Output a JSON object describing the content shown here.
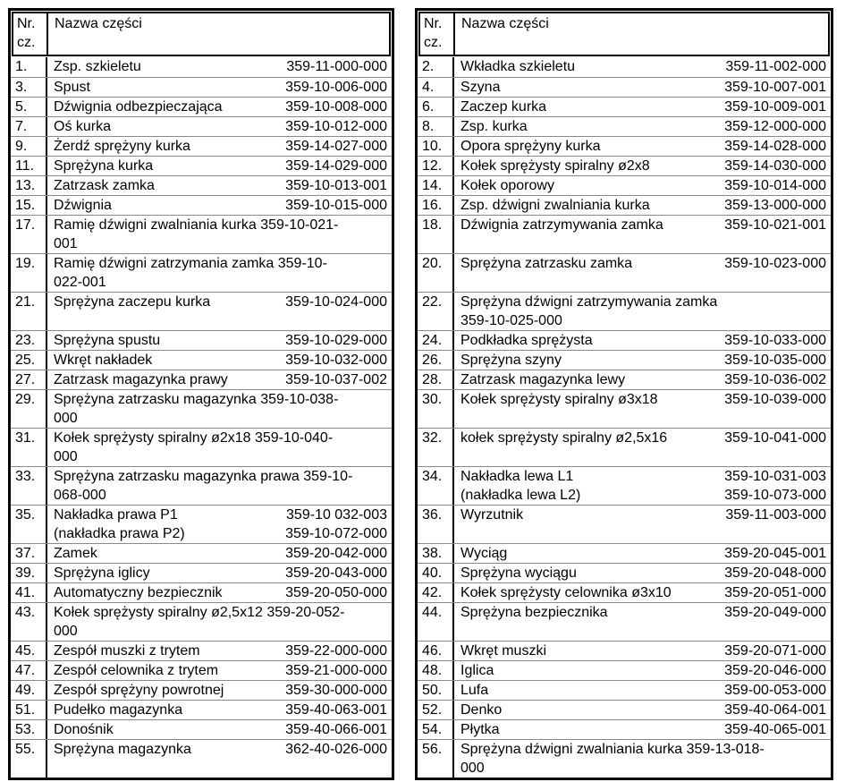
{
  "colors": {
    "background": "#ffffff",
    "text": "#000000",
    "outer_border": "#000000",
    "grid_line": "#8a8a8a"
  },
  "tables": [
    {
      "id": "left",
      "header": {
        "no": "Nr.\ncz.",
        "name": "Nazwa części"
      },
      "rows": [
        {
          "no": "1.",
          "name": "Zsp. szkieletu",
          "number": "359-11-000-000",
          "mode": "split"
        },
        {
          "no": "3.",
          "name": "Spust",
          "number": "359-10-006-000",
          "mode": "split"
        },
        {
          "no": "5.",
          "name": "Dźwignia odbezpieczająca",
          "number": "359-10-008-000",
          "mode": "split"
        },
        {
          "no": "7.",
          "name": "Oś kurka",
          "number": "359-10-012-000",
          "mode": "split"
        },
        {
          "no": "9.",
          "name": "Żerdź sprężyny kurka",
          "number": "359-14-027-000",
          "mode": "split"
        },
        {
          "no": "11.",
          "name": "Sprężyna kurka",
          "number": "359-14-029-000",
          "mode": "split"
        },
        {
          "no": "13.",
          "name": "Zatrzask zamka",
          "number": "359-10-013-001",
          "mode": "split"
        },
        {
          "no": "15.",
          "name": "Dźwignia",
          "number": "359-10-015-000",
          "mode": "split"
        },
        {
          "no": "17.",
          "text": "Ramię dźwigni zwalniania kurka 359-10-021-\n001",
          "mode": "wrap",
          "tall": true
        },
        {
          "no": "19.",
          "text": "Ramię dźwigni zatrzymania zamka 359-10-\n022-001",
          "mode": "wrap",
          "tall": true
        },
        {
          "no": "21.",
          "name": "Sprężyna zaczepu kurka",
          "number": "359-10-024-000",
          "mode": "split",
          "tall": true
        },
        {
          "no": "23.",
          "name": "Sprężyna spustu",
          "number": "359-10-029-000",
          "mode": "split"
        },
        {
          "no": "25.",
          "name": "Wkręt nakładek",
          "number": "359-10-032-000",
          "mode": "split"
        },
        {
          "no": "27.",
          "name": "Zatrzask magazynka prawy",
          "number": "359-10-037-002",
          "mode": "split"
        },
        {
          "no": "29.",
          "text": "Sprężyna zatrzasku magazynka 359-10-038-\n000",
          "mode": "wrap",
          "tall": true
        },
        {
          "no": "31.",
          "text": "Kołek sprężysty spiralny ø2x18  359-10-040-\n000",
          "mode": "wrap",
          "tall": true
        },
        {
          "no": "33.",
          "text": "Sprężyna zatrzasku magazynka prawa 359-10-\n068-000",
          "mode": "wrap",
          "tall": true
        },
        {
          "no": "35.",
          "name": "Nakładka prawa P1\n(nakładka prawa P2)",
          "number": "359-10 032-003\n359-10-072-000",
          "mode": "pair",
          "tall": true
        },
        {
          "no": "37.",
          "name": "Zamek",
          "number": "359-20-042-000",
          "mode": "split"
        },
        {
          "no": "39.",
          "name": "Sprężyna iglicy",
          "number": "359-20-043-000",
          "mode": "split"
        },
        {
          "no": "41.",
          "name": "Automatyczny bezpiecznik",
          "number": "359-20-050-000",
          "mode": "split"
        },
        {
          "no": "43.",
          "text": "Kołek sprężysty spiralny ø2,5x12  359-20-052-\n000",
          "mode": "wrap",
          "tall": true
        },
        {
          "no": "45.",
          "name": "Zespół muszki  z trytem",
          "number": "359-22-000-000",
          "mode": "split"
        },
        {
          "no": "47.",
          "name": "Zespół celownika z trytem",
          "number": "359-21-000-000",
          "mode": "split"
        },
        {
          "no": "49.",
          "name": "Zespół sprężyny powrotnej",
          "number": "359-30-000-000",
          "mode": "split"
        },
        {
          "no": "51.",
          "name": "Pudełko magazynka",
          "number": "359-40-063-001",
          "mode": "split"
        },
        {
          "no": "53.",
          "name": "Donośnik",
          "number": "359-40-066-001",
          "mode": "split"
        },
        {
          "no": "55.",
          "name": "Sprężyna magazynka",
          "number": "362-40-026-000",
          "mode": "split",
          "tall": true
        }
      ]
    },
    {
      "id": "right",
      "header": {
        "no": "Nr.\ncz.",
        "name": "Nazwa części"
      },
      "rows": [
        {
          "no": "2.",
          "name": "Wkładka szkieletu",
          "number": "359-11-002-000",
          "mode": "split"
        },
        {
          "no": "4.",
          "name": "Szyna",
          "number": "359-10-007-001",
          "mode": "split"
        },
        {
          "no": "6.",
          "name": "Zaczep kurka",
          "number": "359-10-009-001",
          "mode": "split"
        },
        {
          "no": "8.",
          "name": "Zsp. kurka",
          "number": "359-12-000-000",
          "mode": "split"
        },
        {
          "no": "10.",
          "name": "Opora sprężyny kurka",
          "number": "359-14-028-000",
          "mode": "split"
        },
        {
          "no": "12.",
          "name": "Kołek sprężysty spiralny ø2x8",
          "number": "359-14-030-000",
          "mode": "split"
        },
        {
          "no": "14.",
          "name": "Kołek oporowy",
          "number": "359-10-014-000",
          "mode": "split"
        },
        {
          "no": "16.",
          "name": "Zsp. dźwigni zwalniania kurka",
          "number": "359-13-000-000",
          "mode": "split"
        },
        {
          "no": "18.",
          "name": "Dźwignia zatrzymywania zamka",
          "number": "359-10-021-001",
          "mode": "split",
          "tall": true
        },
        {
          "no": "20.",
          "name": "Sprężyna zatrzasku zamka",
          "number": "359-10-023-000",
          "mode": "split",
          "tall": true
        },
        {
          "no": "22.",
          "text": "Sprężyna dźwigni zatrzymywania zamka\n359-10-025-000",
          "mode": "wrap",
          "tall": true
        },
        {
          "no": "24.",
          "name": "Podkładka sprężysta",
          "number": "359-10-033-000",
          "mode": "split"
        },
        {
          "no": "26.",
          "name": "Sprężyna szyny",
          "number": "359-10-035-000",
          "mode": "split"
        },
        {
          "no": "28.",
          "name": "Zatrzask magazynka lewy",
          "number": "359-10-036-002",
          "mode": "split"
        },
        {
          "no": "30.",
          "name": "Kołek sprężysty spiralny ø3x18",
          "number": "359-10-039-000",
          "mode": "split",
          "tall": true
        },
        {
          "no": "32.",
          "name": "kołek sprężysty spiralny ø2,5x16",
          "number": "359-10-041-000",
          "mode": "split",
          "tall": true
        },
        {
          "no": "34.",
          "name": "Nakładka lewa L1\n(nakładka lewa L2)",
          "number": "359-10-031-003\n359-10-073-000",
          "mode": "pair",
          "tall": true
        },
        {
          "no": "36.",
          "name": "Wyrzutnik",
          "number": "359-11-003-000",
          "mode": "split",
          "tall": true
        },
        {
          "no": "38.",
          "name": "Wyciąg",
          "number": "359-20-045-001",
          "mode": "split"
        },
        {
          "no": "40.",
          "name": "Sprężyna wyciągu",
          "number": "359-20-048-000",
          "mode": "split"
        },
        {
          "no": "42.",
          "name": "Kołek sprężysty celownika ø3x10",
          "number": "359-20-051-000",
          "mode": "split"
        },
        {
          "no": "44.",
          "name": "Sprężyna bezpiecznika",
          "number": "359-20-049-000",
          "mode": "split",
          "tall": true
        },
        {
          "no": "46.",
          "name": "Wkręt muszki",
          "number": "359-20-071-000",
          "mode": "split"
        },
        {
          "no": "48.",
          "name": "Iglica",
          "number": "359-20-046-000",
          "mode": "split"
        },
        {
          "no": "50.",
          "name": "Lufa",
          "number": "359-00-053-000",
          "mode": "split"
        },
        {
          "no": "52.",
          "name": "Denko",
          "number": "359-40-064-001",
          "mode": "split"
        },
        {
          "no": "54.",
          "name": "Płytka",
          "number": "359-40-065-001",
          "mode": "split"
        },
        {
          "no": "56.",
          "text": "Sprężyna dźwigni zwalniania kurka   359-13-018-\n000",
          "mode": "wrap",
          "tall": true
        }
      ]
    }
  ]
}
